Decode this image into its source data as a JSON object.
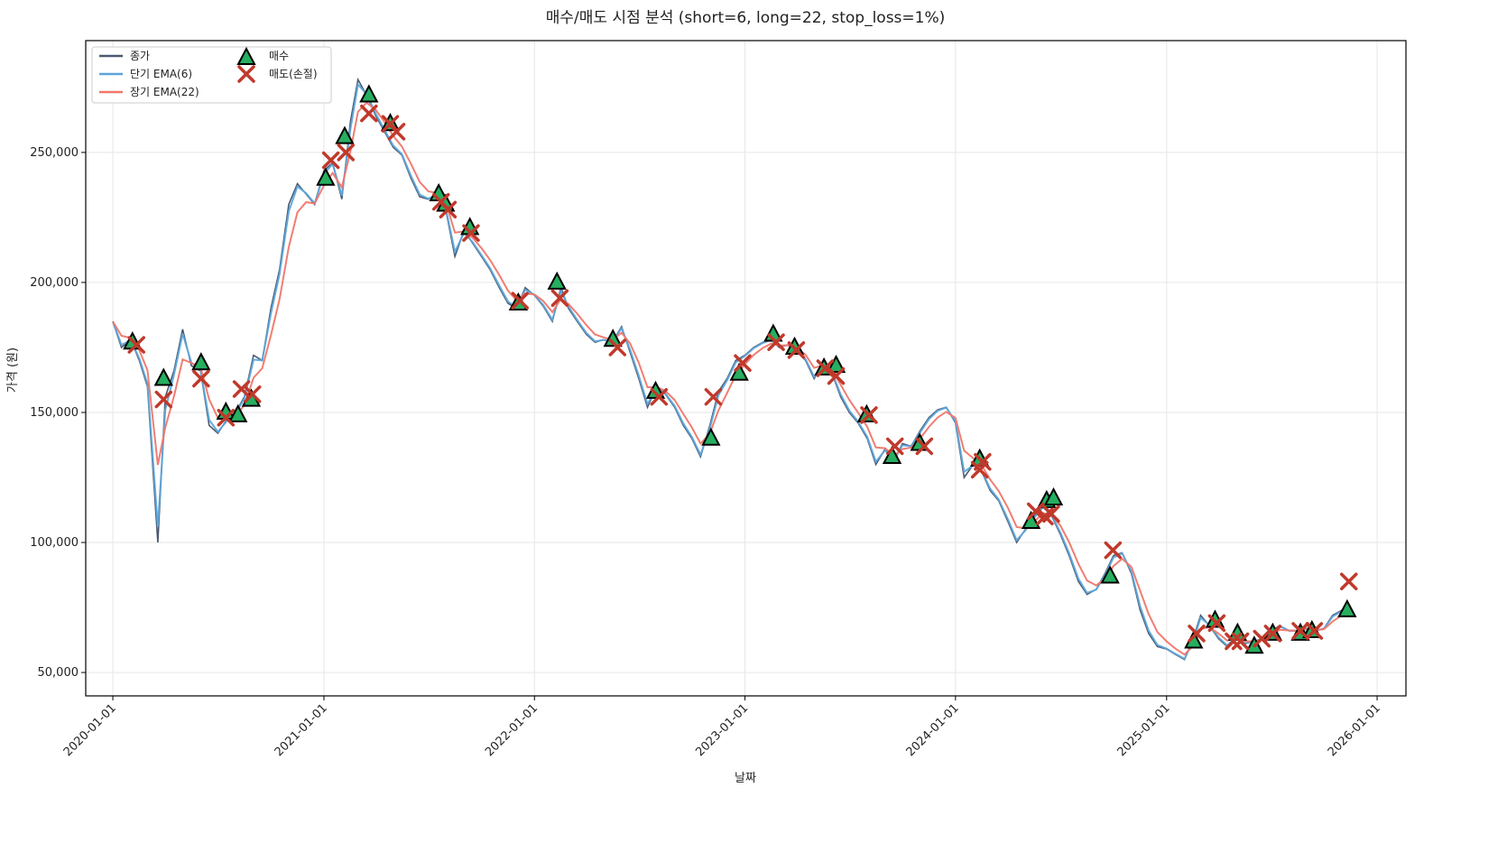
{
  "chart_data": {
    "type": "line",
    "title": "매수/매도 시점 분석 (short=6, long=22, stop_loss=1%)",
    "xlabel": "날짜",
    "ylabel": "가격 (원)",
    "xlim": [
      "2019-11-15",
      "2026-02-20"
    ],
    "ylim": [
      41000,
      293000
    ],
    "grid": true,
    "legend_position": "top-left",
    "x_ticks": [
      "2020-01-01",
      "2021-01-01",
      "2022-01-01",
      "2023-01-01",
      "2024-01-01",
      "2025-01-01",
      "2026-01-01"
    ],
    "y_ticks": [
      50000,
      100000,
      150000,
      200000,
      250000
    ],
    "y_tick_labels": [
      "50,000",
      "100,000",
      "150,000",
      "200,000",
      "250,000"
    ],
    "legend": [
      {
        "label": "종가",
        "kind": "line",
        "color": "#4a5a70"
      },
      {
        "label": "단기 EMA(6)",
        "kind": "line",
        "color": "#5da5da"
      },
      {
        "label": "장기 EMA(22)",
        "kind": "line",
        "color": "#f0766b"
      },
      {
        "label": "매수",
        "kind": "triangle",
        "color": "#27ae60"
      },
      {
        "label": "매도(손절)",
        "kind": "x",
        "color": "#c0392b"
      }
    ],
    "series": {
      "close": [
        [
          "2020-01-01",
          185000
        ],
        [
          "2020-01-16",
          175000
        ],
        [
          "2020-02-01",
          178000
        ],
        [
          "2020-02-16",
          170000
        ],
        [
          "2020-03-01",
          160000
        ],
        [
          "2020-03-19",
          100000
        ],
        [
          "2020-04-01",
          156000
        ],
        [
          "2020-04-16",
          166000
        ],
        [
          "2020-05-01",
          182000
        ],
        [
          "2020-05-16",
          168000
        ],
        [
          "2020-06-01",
          166000
        ],
        [
          "2020-06-16",
          145000
        ],
        [
          "2020-07-01",
          142000
        ],
        [
          "2020-07-16",
          147000
        ],
        [
          "2020-08-01",
          150000
        ],
        [
          "2020-08-16",
          156000
        ],
        [
          "2020-09-01",
          172000
        ],
        [
          "2020-09-16",
          170000
        ],
        [
          "2020-10-01",
          190000
        ],
        [
          "2020-10-16",
          205000
        ],
        [
          "2020-11-01",
          230000
        ],
        [
          "2020-11-16",
          238000
        ],
        [
          "2020-12-01",
          234000
        ],
        [
          "2020-12-16",
          230000
        ],
        [
          "2021-01-01",
          243000
        ],
        [
          "2021-01-16",
          246000
        ],
        [
          "2021-02-01",
          232000
        ],
        [
          "2021-02-16",
          262000
        ],
        [
          "2021-03-01",
          278000
        ],
        [
          "2021-03-16",
          272000
        ],
        [
          "2021-04-01",
          264000
        ],
        [
          "2021-04-16",
          258000
        ],
        [
          "2021-05-01",
          252000
        ],
        [
          "2021-05-16",
          249000
        ],
        [
          "2021-06-01",
          240000
        ],
        [
          "2021-06-16",
          233000
        ],
        [
          "2021-07-01",
          232000
        ],
        [
          "2021-07-16",
          234000
        ],
        [
          "2021-08-01",
          227000
        ],
        [
          "2021-08-16",
          210000
        ],
        [
          "2021-09-01",
          220000
        ],
        [
          "2021-09-16",
          215000
        ],
        [
          "2021-10-01",
          210000
        ],
        [
          "2021-10-16",
          205000
        ],
        [
          "2021-11-01",
          198000
        ],
        [
          "2021-11-16",
          192000
        ],
        [
          "2021-12-01",
          190000
        ],
        [
          "2021-12-16",
          198000
        ],
        [
          "2022-01-01",
          195000
        ],
        [
          "2022-01-16",
          191000
        ],
        [
          "2022-02-01",
          185000
        ],
        [
          "2022-02-16",
          198000
        ],
        [
          "2022-03-01",
          190000
        ],
        [
          "2022-03-16",
          185000
        ],
        [
          "2022-04-01",
          180000
        ],
        [
          "2022-04-16",
          177000
        ],
        [
          "2022-05-01",
          178000
        ],
        [
          "2022-05-16",
          177000
        ],
        [
          "2022-06-01",
          183000
        ],
        [
          "2022-06-16",
          173000
        ],
        [
          "2022-07-01",
          163000
        ],
        [
          "2022-07-16",
          152000
        ],
        [
          "2022-08-01",
          160000
        ],
        [
          "2022-08-16",
          157000
        ],
        [
          "2022-09-01",
          152000
        ],
        [
          "2022-09-16",
          145000
        ],
        [
          "2022-10-01",
          140000
        ],
        [
          "2022-10-16",
          133000
        ],
        [
          "2022-11-01",
          145000
        ],
        [
          "2022-11-16",
          158000
        ],
        [
          "2022-12-01",
          163000
        ],
        [
          "2022-12-16",
          170000
        ],
        [
          "2023-01-01",
          172000
        ],
        [
          "2023-01-16",
          175000
        ],
        [
          "2023-02-01",
          177000
        ],
        [
          "2023-02-16",
          178000
        ],
        [
          "2023-03-01",
          175000
        ],
        [
          "2023-03-16",
          176000
        ],
        [
          "2023-04-01",
          174000
        ],
        [
          "2023-04-16",
          170000
        ],
        [
          "2023-05-01",
          163000
        ],
        [
          "2023-05-16",
          169000
        ],
        [
          "2023-06-01",
          165000
        ],
        [
          "2023-06-16",
          156000
        ],
        [
          "2023-07-01",
          150000
        ],
        [
          "2023-07-16",
          146000
        ],
        [
          "2023-08-01",
          140000
        ],
        [
          "2023-08-16",
          130000
        ],
        [
          "2023-09-01",
          136000
        ],
        [
          "2023-09-16",
          131000
        ],
        [
          "2023-10-01",
          138000
        ],
        [
          "2023-10-16",
          137000
        ],
        [
          "2023-11-01",
          143000
        ],
        [
          "2023-11-16",
          148000
        ],
        [
          "2023-12-01",
          151000
        ],
        [
          "2023-12-16",
          152000
        ],
        [
          "2024-01-01",
          146000
        ],
        [
          "2024-01-16",
          125000
        ],
        [
          "2024-02-01",
          130000
        ],
        [
          "2024-02-16",
          127000
        ],
        [
          "2024-03-01",
          120000
        ],
        [
          "2024-03-16",
          116000
        ],
        [
          "2024-04-01",
          108000
        ],
        [
          "2024-04-16",
          100000
        ],
        [
          "2024-05-01",
          105000
        ],
        [
          "2024-05-16",
          110000
        ],
        [
          "2024-06-01",
          114000
        ],
        [
          "2024-06-16",
          110000
        ],
        [
          "2024-07-01",
          103000
        ],
        [
          "2024-07-16",
          95000
        ],
        [
          "2024-08-01",
          85000
        ],
        [
          "2024-08-16",
          80000
        ],
        [
          "2024-09-01",
          82000
        ],
        [
          "2024-09-16",
          88000
        ],
        [
          "2024-10-01",
          95000
        ],
        [
          "2024-10-16",
          96000
        ],
        [
          "2024-11-01",
          88000
        ],
        [
          "2024-11-16",
          74000
        ],
        [
          "2024-12-01",
          65000
        ],
        [
          "2024-12-16",
          60000
        ],
        [
          "2025-01-01",
          59000
        ],
        [
          "2025-01-16",
          57000
        ],
        [
          "2025-02-01",
          55000
        ],
        [
          "2025-02-16",
          63000
        ],
        [
          "2025-03-01",
          72000
        ],
        [
          "2025-03-16",
          68000
        ],
        [
          "2025-04-01",
          63000
        ],
        [
          "2025-04-16",
          60000
        ],
        [
          "2025-05-01",
          64000
        ],
        [
          "2025-05-16",
          61000
        ],
        [
          "2025-06-01",
          62000
        ],
        [
          "2025-06-16",
          63000
        ],
        [
          "2025-07-01",
          66000
        ],
        [
          "2025-07-16",
          68000
        ],
        [
          "2025-08-01",
          66000
        ],
        [
          "2025-08-16",
          66000
        ],
        [
          "2025-09-01",
          67000
        ],
        [
          "2025-09-16",
          66000
        ],
        [
          "2025-10-01",
          67000
        ],
        [
          "2025-10-16",
          72000
        ],
        [
          "2025-11-01",
          74000
        ]
      ],
      "buy": [
        [
          "2020-02-04",
          177000
        ],
        [
          "2020-03-29",
          163000
        ],
        [
          "2020-06-02",
          169000
        ],
        [
          "2020-07-15",
          150000
        ],
        [
          "2020-08-05",
          149000
        ],
        [
          "2020-08-28",
          155000
        ],
        [
          "2021-01-04",
          240000
        ],
        [
          "2021-02-06",
          256000
        ],
        [
          "2021-03-20",
          272000
        ],
        [
          "2021-04-26",
          261000
        ],
        [
          "2021-07-19",
          234000
        ],
        [
          "2021-07-31",
          230000
        ],
        [
          "2021-09-11",
          221000
        ],
        [
          "2021-12-04",
          192000
        ],
        [
          "2022-02-09",
          200000
        ],
        [
          "2022-05-17",
          178000
        ],
        [
          "2022-07-30",
          158000
        ],
        [
          "2022-11-03",
          140000
        ],
        [
          "2022-12-22",
          165000
        ],
        [
          "2023-02-19",
          180000
        ],
        [
          "2023-03-28",
          175000
        ],
        [
          "2023-05-18",
          167000
        ],
        [
          "2023-06-08",
          168000
        ],
        [
          "2023-07-31",
          149000
        ],
        [
          "2023-09-13",
          133000
        ],
        [
          "2023-10-31",
          138000
        ],
        [
          "2024-02-12",
          132000
        ],
        [
          "2024-05-11",
          108000
        ],
        [
          "2024-06-07",
          116000
        ],
        [
          "2024-06-19",
          117000
        ],
        [
          "2024-09-25",
          87000
        ],
        [
          "2025-02-17",
          62000
        ],
        [
          "2025-03-26",
          70000
        ],
        [
          "2025-05-04",
          65000
        ],
        [
          "2025-06-02",
          60000
        ],
        [
          "2025-07-04",
          65000
        ],
        [
          "2025-08-21",
          65000
        ],
        [
          "2025-09-10",
          66000
        ],
        [
          "2025-11-10",
          74000
        ]
      ],
      "sell": [
        [
          "2020-02-11",
          176000
        ],
        [
          "2020-03-29",
          155000
        ],
        [
          "2020-06-02",
          163000
        ],
        [
          "2020-07-15",
          148000
        ],
        [
          "2020-08-11",
          159000
        ],
        [
          "2020-08-30",
          157000
        ],
        [
          "2021-01-13",
          247000
        ],
        [
          "2021-02-08",
          250000
        ],
        [
          "2021-03-20",
          265000
        ],
        [
          "2021-04-26",
          261000
        ],
        [
          "2021-05-07",
          258000
        ],
        [
          "2021-07-23",
          231000
        ],
        [
          "2021-08-04",
          228000
        ],
        [
          "2021-09-13",
          219000
        ],
        [
          "2021-12-07",
          193000
        ],
        [
          "2022-02-14",
          194000
        ],
        [
          "2022-05-25",
          175000
        ],
        [
          "2022-08-05",
          156000
        ],
        [
          "2022-11-07",
          156000
        ],
        [
          "2022-12-28",
          169000
        ],
        [
          "2023-02-24",
          177000
        ],
        [
          "2023-03-31",
          174000
        ],
        [
          "2023-05-20",
          167000
        ],
        [
          "2023-06-08",
          164000
        ],
        [
          "2023-08-04",
          149000
        ],
        [
          "2023-09-18",
          137000
        ],
        [
          "2023-11-08",
          137000
        ],
        [
          "2024-02-12",
          128000
        ],
        [
          "2024-02-17",
          131000
        ],
        [
          "2024-05-19",
          112000
        ],
        [
          "2024-06-04",
          110000
        ],
        [
          "2024-06-15",
          111000
        ],
        [
          "2024-09-30",
          97000
        ],
        [
          "2025-02-22",
          65000
        ],
        [
          "2025-03-29",
          69000
        ],
        [
          "2025-04-27",
          62000
        ],
        [
          "2025-05-09",
          62000
        ],
        [
          "2025-06-15",
          63000
        ],
        [
          "2025-07-04",
          65000
        ],
        [
          "2025-08-21",
          66000
        ],
        [
          "2025-09-14",
          66000
        ],
        [
          "2025-11-13",
          85000
        ]
      ]
    }
  }
}
